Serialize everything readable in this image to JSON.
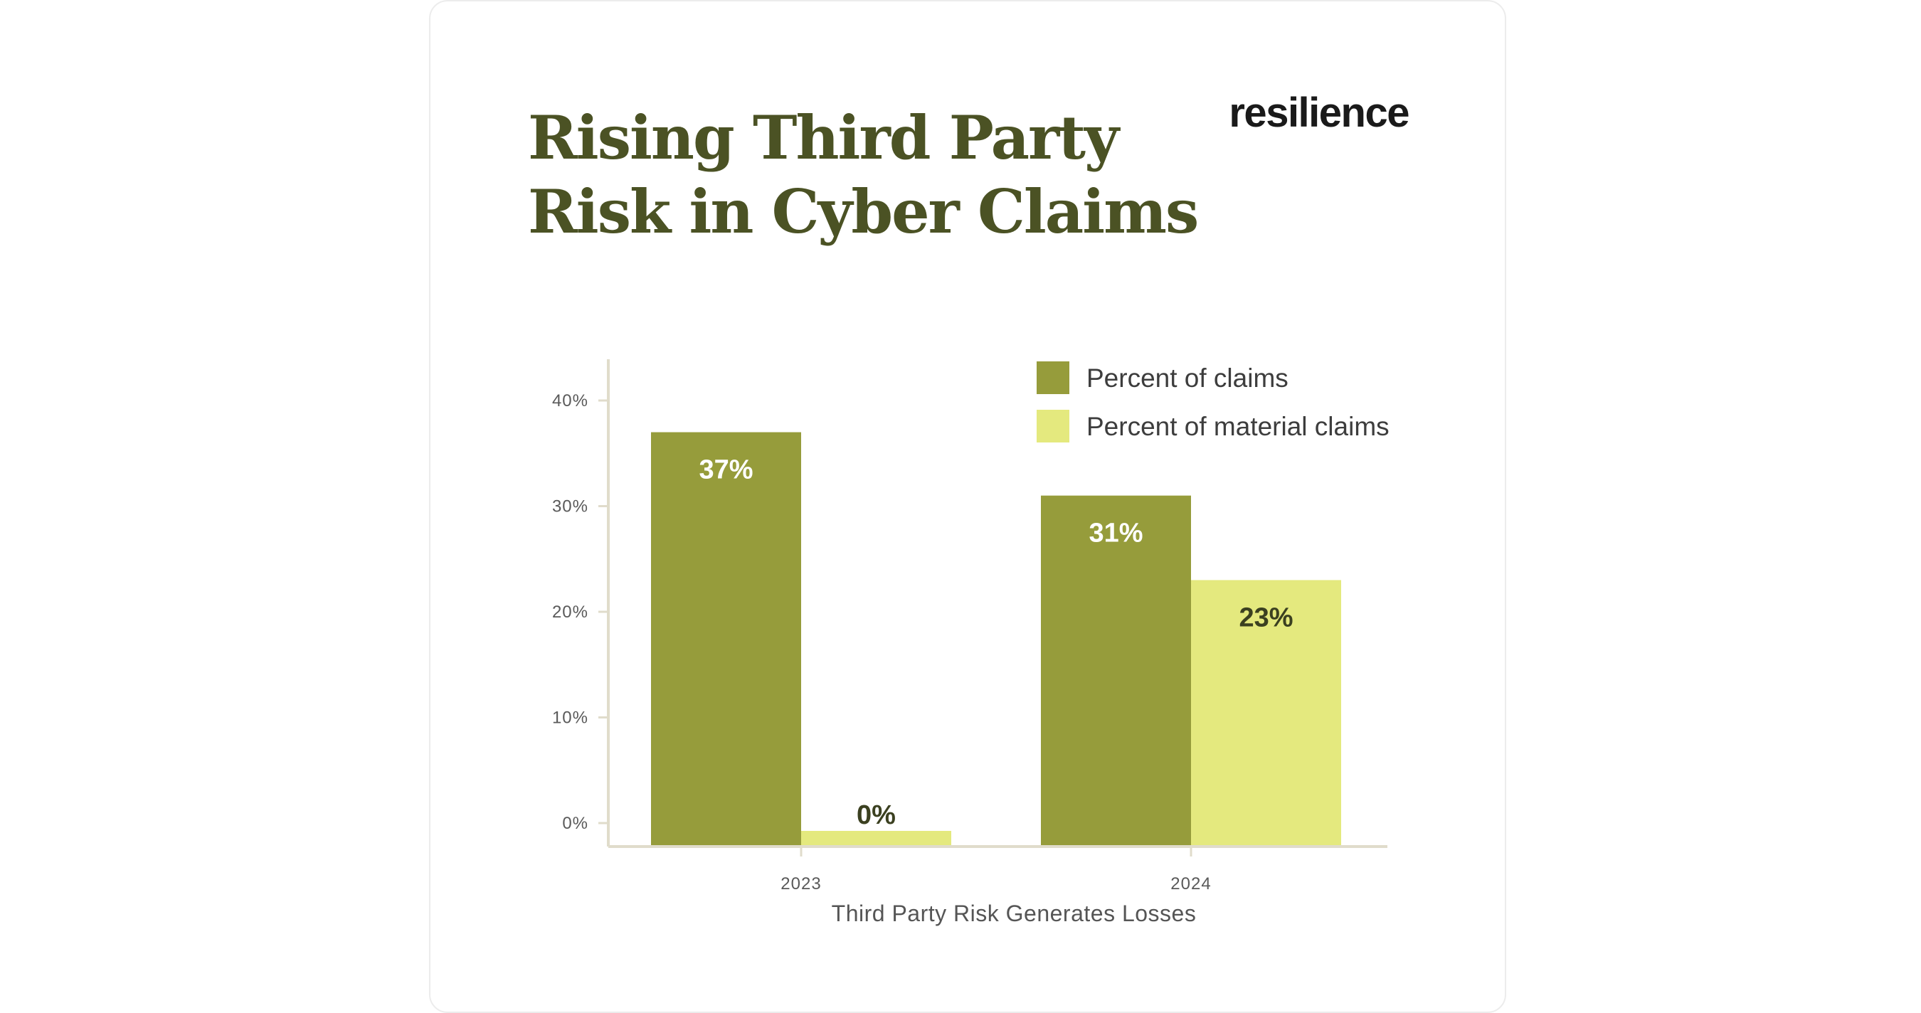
{
  "header": {
    "title_lines": [
      "Rising Third Party",
      "Risk in Cyber Claims"
    ],
    "logo_text": "resilience"
  },
  "colors": {
    "title": "#4b5224",
    "percent_of_claims": "#969c3b",
    "percent_of_material_claims": "#e4e97e",
    "axis": "#e0dccb",
    "bar_label_dark_bg": "#ffffff",
    "bar_label_light_bg": "#3b4020",
    "tick_text": "#5a5a5a",
    "axis_title": "#555555",
    "legend_text": "#3d3d3d"
  },
  "chart_data": {
    "type": "bar",
    "categories": [
      "2023",
      "2024"
    ],
    "series": [
      {
        "name": "Percent of claims",
        "values": [
          37,
          31
        ],
        "labels": [
          "37%",
          "31%"
        ]
      },
      {
        "name": "Percent of material claims",
        "values": [
          0,
          23
        ],
        "labels": [
          "0%",
          "23%"
        ]
      }
    ],
    "xlabel": "Third Party Risk Generates Losses",
    "ylabel": "",
    "yticks": [
      0,
      10,
      20,
      30,
      40
    ],
    "ytick_labels": [
      "0%",
      "10%",
      "20%",
      "30%",
      "40%"
    ],
    "ylim": [
      0,
      44
    ],
    "grid": false,
    "legend_position": "top-right"
  }
}
